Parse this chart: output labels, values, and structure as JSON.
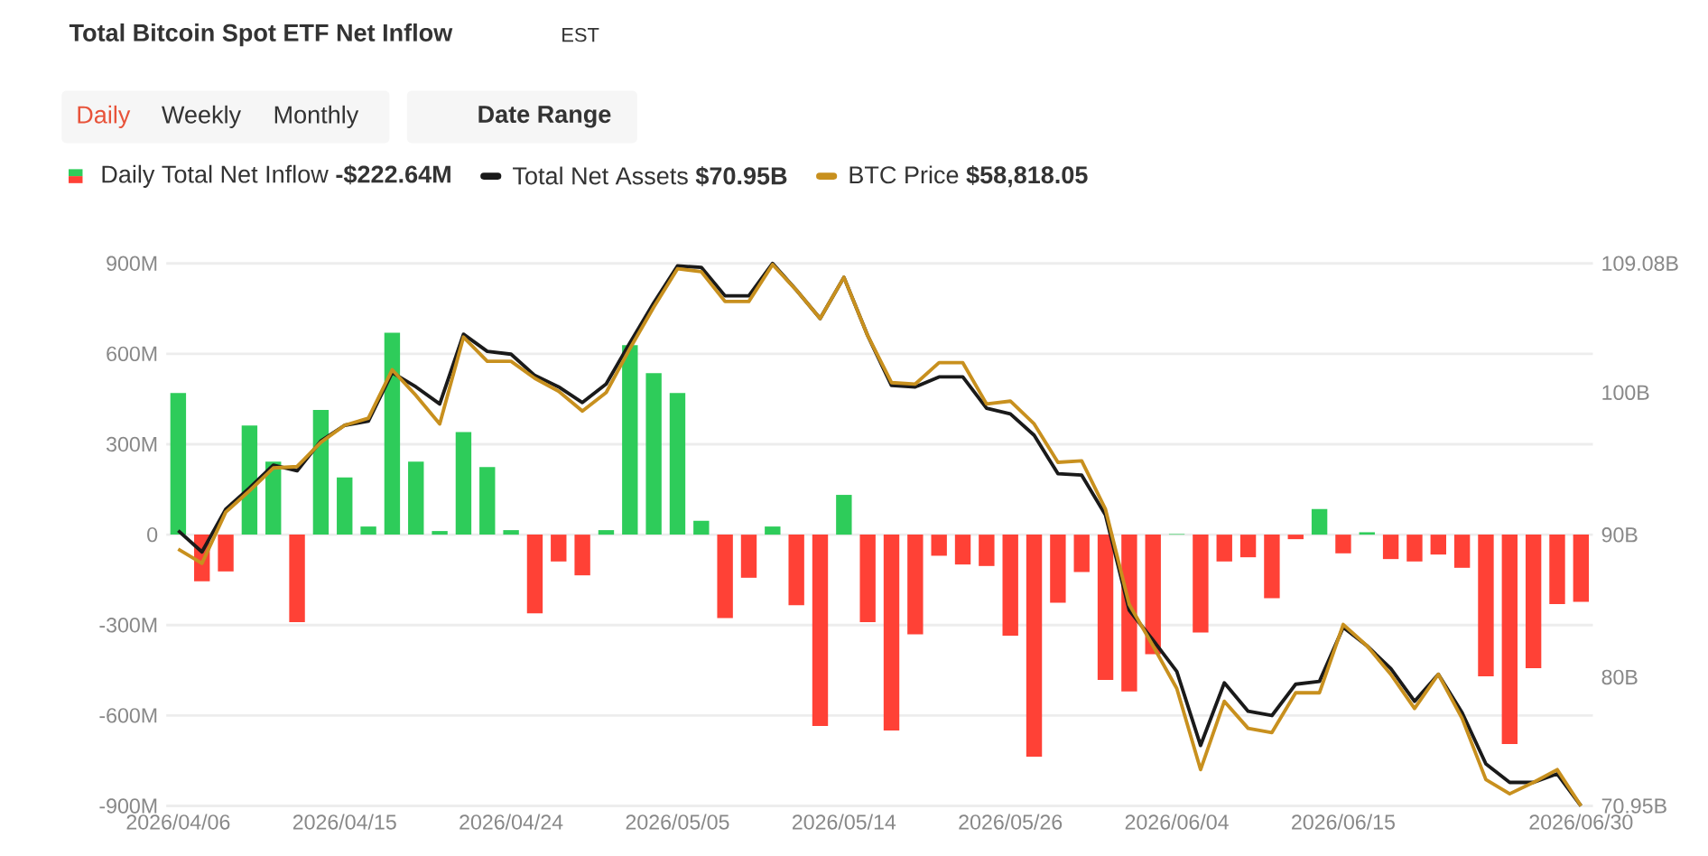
{
  "chart_data": {
    "type": "bar",
    "title": "Total Bitcoin Spot ETF Net Inflow",
    "annotations": [
      "EST",
      "Daily",
      "Weekly",
      "Monthly",
      "Date Range"
    ],
    "categories": [
      "2026/04/06",
      null,
      null,
      null,
      null,
      null,
      null,
      "2026/04/15",
      null,
      null,
      null,
      null,
      null,
      null,
      "2026/04/24",
      null,
      null,
      null,
      null,
      null,
      null,
      "2026/05/05",
      null,
      null,
      null,
      null,
      null,
      null,
      "2026/05/14",
      null,
      null,
      null,
      null,
      null,
      null,
      "2026/05/26",
      null,
      null,
      null,
      null,
      null,
      null,
      "2026/06/04",
      null,
      null,
      null,
      null,
      null,
      null,
      "2026/06/15",
      null,
      null,
      null,
      null,
      null,
      null,
      null,
      null,
      null,
      "2026/06/30"
    ],
    "series": [
      {
        "name": "Daily Total Net Inflow **-$222.64M**",
        "values": [
          470,
          -155,
          -122,
          362,
          242,
          -290,
          414,
          190,
          27,
          670,
          242,
          12,
          340,
          224,
          15,
          -261,
          -89,
          -135,
          15,
          629,
          536,
          470,
          46,
          -277,
          -143,
          27,
          -234,
          -635,
          132,
          -290,
          -650,
          -331,
          -70,
          -99,
          -104,
          -335,
          -737,
          -226,
          -124,
          -482,
          -520,
          -397,
          2,
          -325,
          -89,
          -75,
          -211,
          -15,
          85,
          -62,
          8,
          -81,
          -89,
          -66,
          -110,
          -470,
          -695,
          -443,
          -230,
          -222.64
        ],
        "colors": [
          "#2ecc5a",
          "#ff4136",
          "#ff4136",
          "#2ecc5a",
          "#2ecc5a",
          "#ff4136",
          "#2ecc5a",
          "#2ecc5a",
          "#2ecc5a",
          "#2ecc5a",
          "#2ecc5a",
          "#2ecc5a",
          "#2ecc5a",
          "#2ecc5a",
          "#2ecc5a",
          "#ff4136",
          "#ff4136",
          "#ff4136",
          "#2ecc5a",
          "#2ecc5a",
          "#2ecc5a",
          "#2ecc5a",
          "#2ecc5a",
          "#ff4136",
          "#ff4136",
          "#2ecc5a",
          "#ff4136",
          "#ff4136",
          "#2ecc5a",
          "#ff4136",
          "#ff4136",
          "#ff4136",
          "#ff4136",
          "#ff4136",
          "#ff4136",
          "#ff4136",
          "#ff4136",
          "#ff4136",
          "#ff4136",
          "#ff4136",
          "#ff4136",
          "#ff4136",
          "#2ecc5a",
          "#ff4136",
          "#ff4136",
          "#ff4136",
          "#ff4136",
          "#ff4136",
          "#2ecc5a",
          "#ff4136",
          "#2ecc5a",
          "#ff4136",
          "#ff4136",
          "#ff4136",
          "#ff4136",
          "#ff4136",
          "#ff4136",
          "#ff4136",
          "#ff4136",
          "#ff4136"
        ]
      },
      {
        "name": "Total Net Assets **$70.95B**",
        "type": "line",
        "axis": "y2",
        "color": "#1a1a1a",
        "values": [
          90.3,
          88.8,
          91.8,
          93.3,
          94.9,
          94.5,
          96.6,
          97.7,
          98.0,
          101.4,
          100.4,
          99.2,
          104.1,
          102.9,
          102.7,
          101.2,
          100.4,
          99.3,
          100.6,
          103.5,
          106.3,
          108.9,
          108.8,
          106.8,
          106.8,
          109.08,
          107.2,
          105.2,
          108.1,
          104.0,
          100.5,
          100.4,
          101.1,
          101.1,
          98.9,
          98.5,
          97.0,
          94.3,
          94.2,
          91.4,
          84.7,
          82.6,
          80.4,
          75.2,
          79.6,
          77.6,
          77.3,
          79.5,
          79.7,
          83.5,
          82.2,
          80.6,
          78.3,
          80.2,
          77.5,
          73.9,
          72.6,
          72.6,
          73.2,
          70.95
        ]
      },
      {
        "name": "BTC Price **$58,818.05**",
        "type": "line",
        "axis": "y2",
        "color": "#c8901e",
        "values": [
          89.0,
          88.0,
          91.6,
          93.1,
          94.7,
          94.8,
          96.5,
          97.7,
          98.2,
          101.6,
          99.8,
          97.8,
          103.9,
          102.2,
          102.2,
          101.0,
          100.1,
          98.7,
          100.0,
          103.1,
          106.0,
          108.7,
          108.5,
          106.4,
          106.4,
          109.0,
          107.2,
          105.2,
          108.1,
          104.0,
          100.7,
          100.6,
          102.1,
          102.1,
          99.2,
          99.4,
          97.8,
          95.1,
          95.2,
          91.8,
          85.1,
          82.2,
          79.2,
          73.5,
          78.3,
          76.4,
          76.1,
          78.9,
          78.9,
          83.7,
          82.2,
          80.2,
          77.8,
          80.2,
          77.1,
          72.8,
          71.8,
          72.6,
          73.5,
          70.95
        ]
      }
    ],
    "ylim": [
      -900,
      900
    ],
    "yticks": [
      {
        "value": -900,
        "label": "-900M"
      },
      {
        "value": -600,
        "label": "-600M"
      },
      {
        "value": -300,
        "label": "-300M"
      },
      0,
      {
        "value": 300,
        "label": "300M"
      },
      {
        "value": 600,
        "label": "600M"
      },
      {
        "value": 900,
        "label": "900M"
      }
    ],
    "y2lim": [
      70.95,
      109.08
    ],
    "y2ticks": [
      {
        "value": 70.95,
        "label": "70.95B"
      },
      {
        "value": 80,
        "label": "80B"
      },
      {
        "value": 90,
        "label": "90B"
      },
      {
        "value": 100,
        "label": "100B"
      },
      {
        "value": 109.08,
        "label": "109.08B"
      }
    ],
    "grid": "y",
    "legend": "top"
  }
}
